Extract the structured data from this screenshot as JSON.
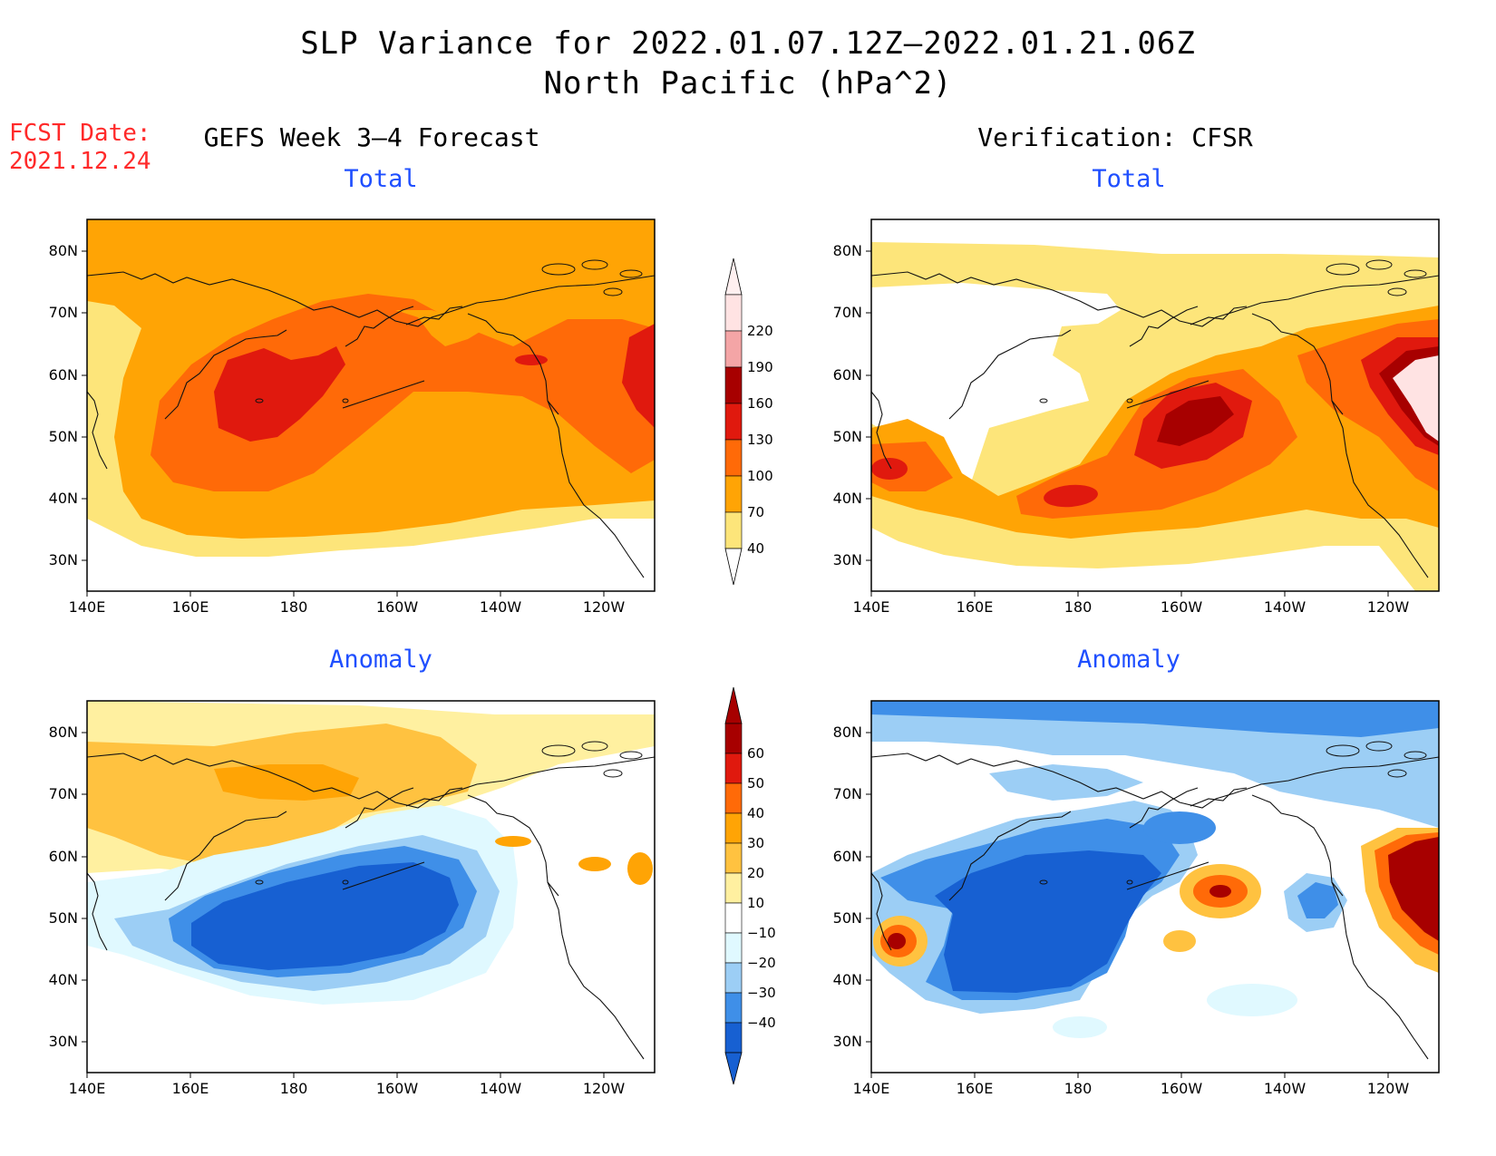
{
  "header": {
    "title_line1": "SLP Variance for 2022.01.07.12Z–2022.01.21.06Z",
    "title_line2": "North Pacific (hPa^2)"
  },
  "forecast_date": {
    "label": "FCST Date:",
    "value": "2021.12.24"
  },
  "columns": {
    "left": "GEFS Week 3–4 Forecast",
    "right": "Verification: CFSR"
  },
  "panels": [
    {
      "id": "fcst-total",
      "title": "Total"
    },
    {
      "id": "verif-total",
      "title": "Total"
    },
    {
      "id": "fcst-anomaly",
      "title": "Anomaly"
    },
    {
      "id": "verif-anomaly",
      "title": "Anomaly"
    }
  ],
  "axes": {
    "lat_labels": [
      "80N",
      "70N",
      "60N",
      "50N",
      "40N",
      "30N"
    ],
    "lon_labels": [
      "140E",
      "160E",
      "180",
      "160W",
      "140W",
      "120W"
    ]
  },
  "colorbars": {
    "total": {
      "levels": [
        "220",
        "190",
        "160",
        "130",
        "100",
        "70",
        "40"
      ],
      "colors": [
        "#ffe3e3",
        "#f4a5a6",
        "#a70000",
        "#e0190e",
        "#ff6a08",
        "#ffa405",
        "#fde57a"
      ]
    },
    "anomaly": {
      "levels": [
        "60",
        "50",
        "40",
        "30",
        "20",
        "10",
        "−10",
        "−20",
        "−30",
        "−40"
      ],
      "colors": [
        "#a70000",
        "#e0190e",
        "#ff6a08",
        "#ffa405",
        "#ffc240",
        "#fff0a0",
        "#ffffff",
        "#e0f9ff",
        "#9ccef5",
        "#3f8fe8",
        "#1760d2"
      ]
    }
  },
  "palette": {
    "c40": "#fde57a",
    "c70": "#ffa405",
    "c100": "#ff6a08",
    "c130": "#e0190e",
    "c160": "#a70000",
    "c190": "#f4a5a6",
    "c220": "#ffe3e3",
    "a10": "#fff0a0",
    "a20": "#ffc240",
    "a30": "#ffa405",
    "a40": "#ff6a08",
    "a50": "#e0190e",
    "a60": "#a70000",
    "n10": "#e0f9ff",
    "n20": "#9ccef5",
    "n30": "#3f8fe8",
    "n40": "#1760d2"
  }
}
